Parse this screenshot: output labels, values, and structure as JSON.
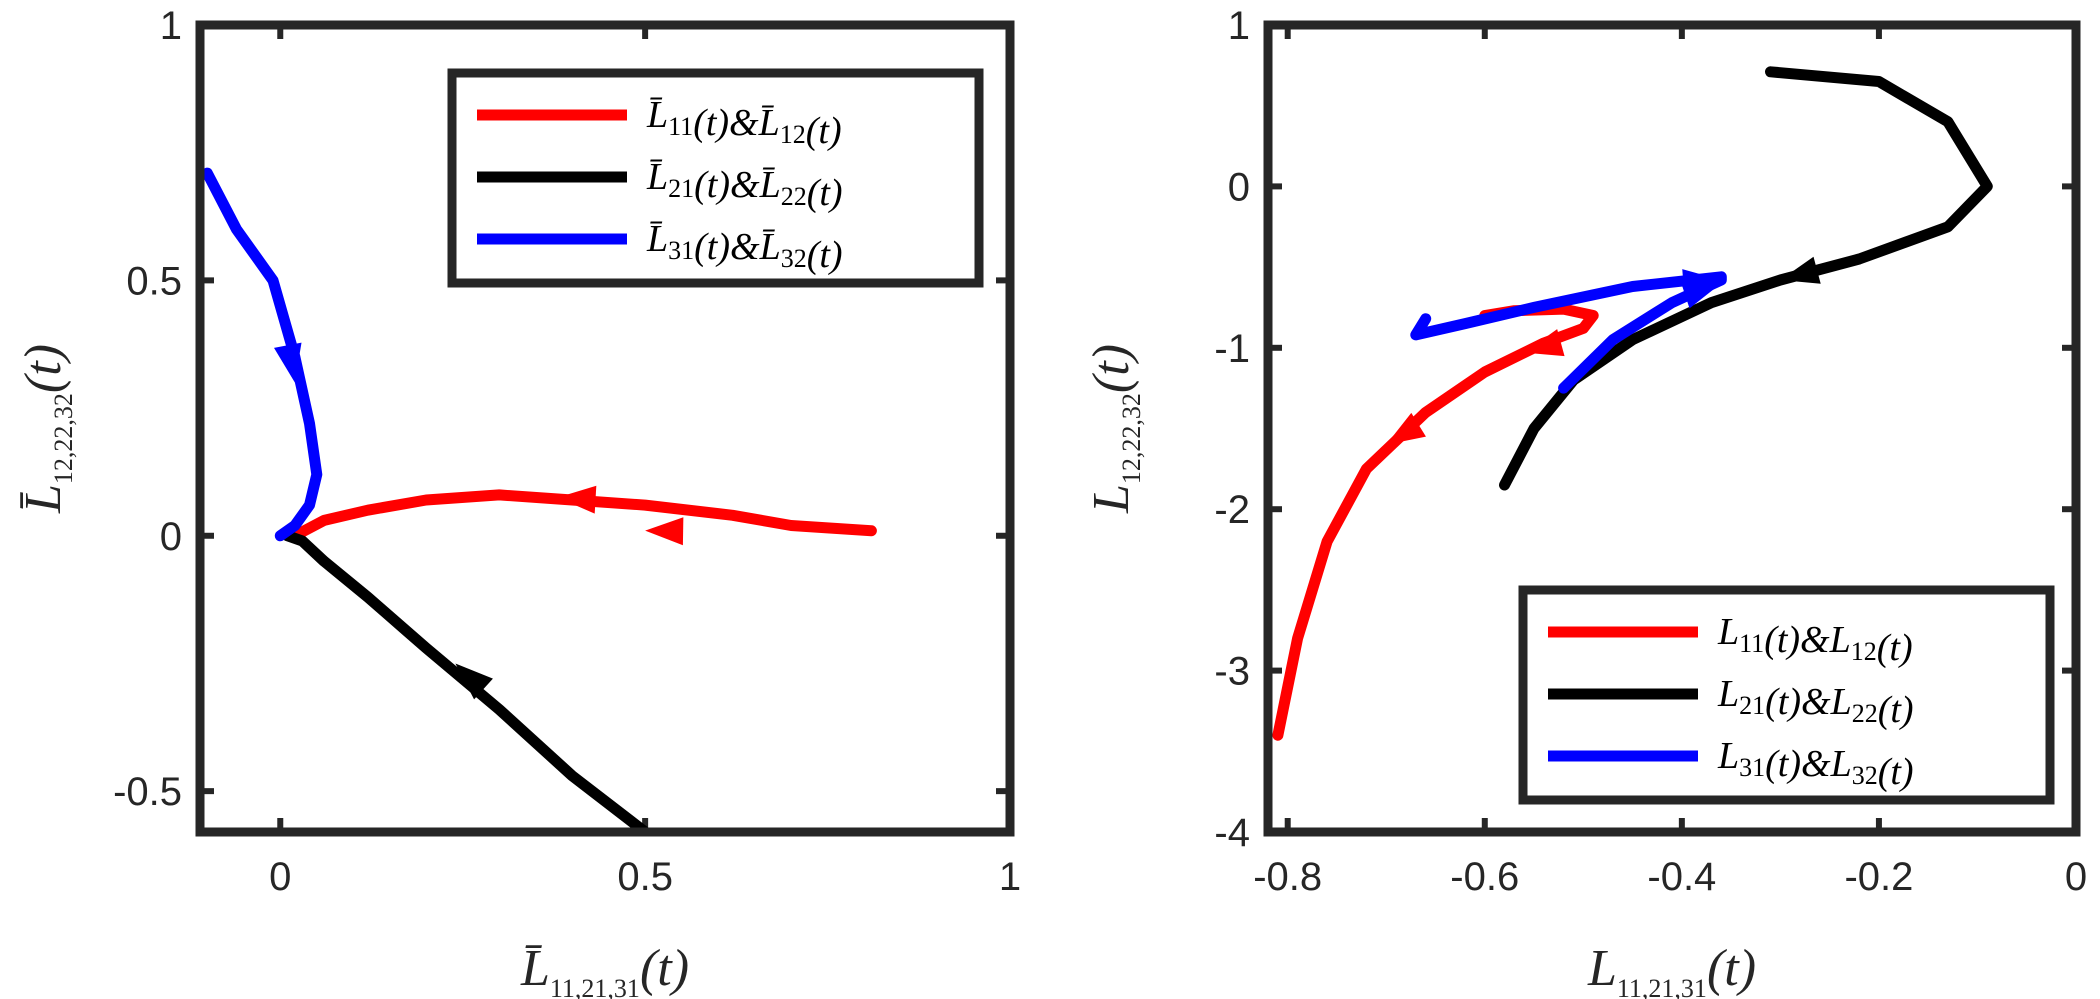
{
  "chart_data": [
    {
      "type": "line",
      "id": "left",
      "xlabel_main": "L̄",
      "xlabel_sub": "11,21,31",
      "xlabel_tail": "(t)",
      "ylabel_main": "L̄",
      "ylabel_sub": "12,22,32",
      "ylabel_tail": "(t)",
      "xlim": [
        -0.11,
        1.0
      ],
      "ylim": [
        -0.58,
        1.0
      ],
      "xticks": [
        0,
        0.5,
        1
      ],
      "xtick_labels": [
        "0",
        "0.5",
        "1"
      ],
      "yticks": [
        -0.5,
        0,
        0.5,
        1
      ],
      "ytick_labels": [
        "-0.5",
        "0",
        "0.5",
        "1"
      ],
      "legend_position": "top-right",
      "series": [
        {
          "name": "red",
          "color": "#ff0000",
          "legend": [
            "L̄",
            "11",
            "(t)&",
            "L̄",
            "12",
            "(t)"
          ],
          "points": [
            [
              0.81,
              0.01
            ],
            [
              0.7,
              0.02
            ],
            [
              0.62,
              0.04
            ],
            [
              0.5,
              0.06
            ],
            [
              0.4,
              0.07
            ],
            [
              0.3,
              0.08
            ],
            [
              0.2,
              0.07
            ],
            [
              0.12,
              0.05
            ],
            [
              0.06,
              0.03
            ],
            [
              0.02,
              0.0
            ]
          ],
          "arrows": [
            [
              0.71,
              0.005,
              0.5,
              0.01
            ],
            [
              0.5,
              0.065,
              0.38,
              0.075
            ]
          ]
        },
        {
          "name": "black",
          "color": "#000000",
          "legend": [
            "L̄",
            "21",
            "(t)&",
            "L̄",
            "22",
            "(t)"
          ],
          "points": [
            [
              0.5,
              -0.58
            ],
            [
              0.4,
              -0.47
            ],
            [
              0.3,
              -0.34
            ],
            [
              0.2,
              -0.22
            ],
            [
              0.12,
              -0.12
            ],
            [
              0.06,
              -0.05
            ],
            [
              0.03,
              -0.01
            ],
            [
              0.01,
              0.0
            ]
          ],
          "arrows": [
            [
              0.34,
              -0.38,
              0.24,
              -0.25
            ]
          ]
        },
        {
          "name": "blue",
          "color": "#0000ff",
          "legend": [
            "L̄",
            "31",
            "(t)&",
            "L̄",
            "32",
            "(t)"
          ],
          "points": [
            [
              -0.1,
              0.71
            ],
            [
              -0.06,
              0.6
            ],
            [
              -0.01,
              0.5
            ],
            [
              0.02,
              0.35
            ],
            [
              0.04,
              0.22
            ],
            [
              0.05,
              0.12
            ],
            [
              0.04,
              0.06
            ],
            [
              0.02,
              0.02
            ],
            [
              0.0,
              0.0
            ]
          ],
          "arrows": [
            [
              0.0,
              0.45,
              0.02,
              0.3
            ]
          ]
        }
      ]
    },
    {
      "type": "line",
      "id": "right",
      "xlabel_main": "L",
      "xlabel_sub": "11,21,31",
      "xlabel_tail": "(t)",
      "ylabel_main": "L",
      "ylabel_sub": "12,22,32",
      "ylabel_tail": "(t)",
      "xlim": [
        -0.82,
        0.0
      ],
      "ylim": [
        -4,
        1
      ],
      "xticks": [
        -0.8,
        -0.6,
        -0.4,
        -0.2,
        0
      ],
      "xtick_labels": [
        "-0.8",
        "-0.6",
        "-0.4",
        "-0.2",
        "0"
      ],
      "yticks": [
        -4,
        -3,
        -2,
        -1,
        0,
        1
      ],
      "ytick_labels": [
        "-4",
        "-3",
        "-2",
        "-1",
        "0",
        "1"
      ],
      "legend_position": "bottom-right",
      "series": [
        {
          "name": "red",
          "color": "#ff0000",
          "legend": [
            "L",
            "11",
            "(t)&",
            "L",
            "12",
            "(t)"
          ],
          "points": [
            [
              -0.81,
              -3.4
            ],
            [
              -0.79,
              -2.8
            ],
            [
              -0.76,
              -2.2
            ],
            [
              -0.72,
              -1.75
            ],
            [
              -0.66,
              -1.4
            ],
            [
              -0.6,
              -1.15
            ],
            [
              -0.54,
              -0.97
            ],
            [
              -0.5,
              -0.88
            ],
            [
              -0.49,
              -0.8
            ],
            [
              -0.52,
              -0.76
            ],
            [
              -0.57,
              -0.77
            ],
            [
              -0.6,
              -0.8
            ]
          ],
          "arrows": [
            [
              -0.62,
              -1.3,
              -0.7,
              -1.6
            ],
            [
              -0.5,
              -0.93,
              -0.56,
              -1.03
            ]
          ]
        },
        {
          "name": "black",
          "color": "#000000",
          "legend": [
            "L",
            "21",
            "(t)&",
            "L",
            "22",
            "(t)"
          ],
          "points": [
            [
              -0.31,
              0.71
            ],
            [
              -0.2,
              0.65
            ],
            [
              -0.13,
              0.4
            ],
            [
              -0.09,
              0.0
            ],
            [
              -0.13,
              -0.25
            ],
            [
              -0.22,
              -0.45
            ],
            [
              -0.3,
              -0.58
            ],
            [
              -0.37,
              -0.72
            ],
            [
              -0.45,
              -0.95
            ],
            [
              -0.51,
              -1.2
            ],
            [
              -0.55,
              -1.5
            ],
            [
              -0.58,
              -1.85
            ]
          ],
          "arrows": [
            [
              -0.22,
              -0.45,
              -0.3,
              -0.58
            ]
          ]
        },
        {
          "name": "blue",
          "color": "#0000ff",
          "legend": [
            "L",
            "31",
            "(t)&",
            "L",
            "32",
            "(t)"
          ],
          "points": [
            [
              -0.52,
              -1.25
            ],
            [
              -0.47,
              -0.95
            ],
            [
              -0.41,
              -0.72
            ],
            [
              -0.36,
              -0.58
            ],
            [
              -0.36,
              -0.56
            ],
            [
              -0.45,
              -0.62
            ],
            [
              -0.55,
              -0.75
            ],
            [
              -0.62,
              -0.85
            ],
            [
              -0.67,
              -0.92
            ],
            [
              -0.66,
              -0.82
            ]
          ],
          "arrows": [
            [
              -0.42,
              -0.72,
              -0.36,
              -0.6
            ],
            [
              -0.44,
              -0.62,
              -0.36,
              -0.58
            ]
          ]
        }
      ]
    }
  ]
}
